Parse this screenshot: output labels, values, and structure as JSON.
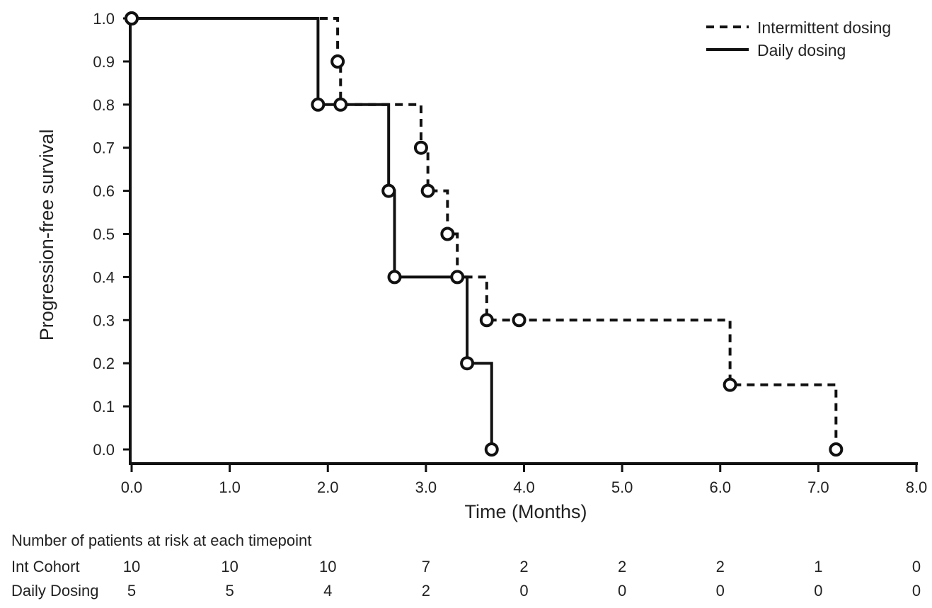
{
  "chart_data": {
    "type": "line",
    "title": "",
    "xlabel": "Time (Months)",
    "ylabel": "Progression-free survival",
    "xlim": [
      0,
      8
    ],
    "ylim": [
      0,
      1
    ],
    "x_ticks": [
      "0.0",
      "1.0",
      "2.0",
      "3.0",
      "4.0",
      "5.0",
      "6.0",
      "7.0",
      "8.0"
    ],
    "y_ticks": [
      "0.0",
      "0.1",
      "0.2",
      "0.3",
      "0.4",
      "0.5",
      "0.6",
      "0.7",
      "0.8",
      "0.9",
      "1.0"
    ],
    "grid": false,
    "legend_position": "top-right",
    "step": true,
    "series": [
      {
        "name": "Intermittent dosing",
        "style": "dashed",
        "color": "#111111",
        "x": [
          0.0,
          2.1,
          2.13,
          2.95,
          3.02,
          3.22,
          3.32,
          3.62,
          3.95,
          6.1,
          7.18
        ],
        "y": [
          1.0,
          0.9,
          0.8,
          0.7,
          0.6,
          0.5,
          0.4,
          0.3,
          0.3,
          0.15,
          0.0
        ],
        "markers": [
          {
            "x": 0.0,
            "y": 1.0
          },
          {
            "x": 2.1,
            "y": 0.9
          },
          {
            "x": 2.13,
            "y": 0.8
          },
          {
            "x": 2.95,
            "y": 0.7
          },
          {
            "x": 3.02,
            "y": 0.6
          },
          {
            "x": 3.22,
            "y": 0.5
          },
          {
            "x": 3.32,
            "y": 0.4
          },
          {
            "x": 3.62,
            "y": 0.3
          },
          {
            "x": 3.95,
            "y": 0.3
          },
          {
            "x": 6.1,
            "y": 0.15
          },
          {
            "x": 7.18,
            "y": 0.0
          }
        ]
      },
      {
        "name": "Daily dosing",
        "style": "solid",
        "color": "#111111",
        "x": [
          0.0,
          1.9,
          2.62,
          2.68,
          3.42,
          3.67
        ],
        "y": [
          1.0,
          0.8,
          0.6,
          0.4,
          0.2,
          0.0
        ],
        "markers": [
          {
            "x": 0.0,
            "y": 1.0
          },
          {
            "x": 1.9,
            "y": 0.8
          },
          {
            "x": 2.62,
            "y": 0.6
          },
          {
            "x": 2.68,
            "y": 0.4
          },
          {
            "x": 3.42,
            "y": 0.2
          },
          {
            "x": 3.67,
            "y": 0.0
          }
        ]
      }
    ]
  },
  "risk_table": {
    "title": "Number of patients at risk at each timepoint",
    "rows": [
      {
        "label": "Int Cohort",
        "values": [
          "10",
          "10",
          "10",
          "7",
          "2",
          "2",
          "2",
          "1",
          "0"
        ]
      },
      {
        "label": "Daily Dosing",
        "values": [
          "5",
          "5",
          "4",
          "2",
          "0",
          "0",
          "0",
          "0",
          "0"
        ]
      }
    ]
  }
}
